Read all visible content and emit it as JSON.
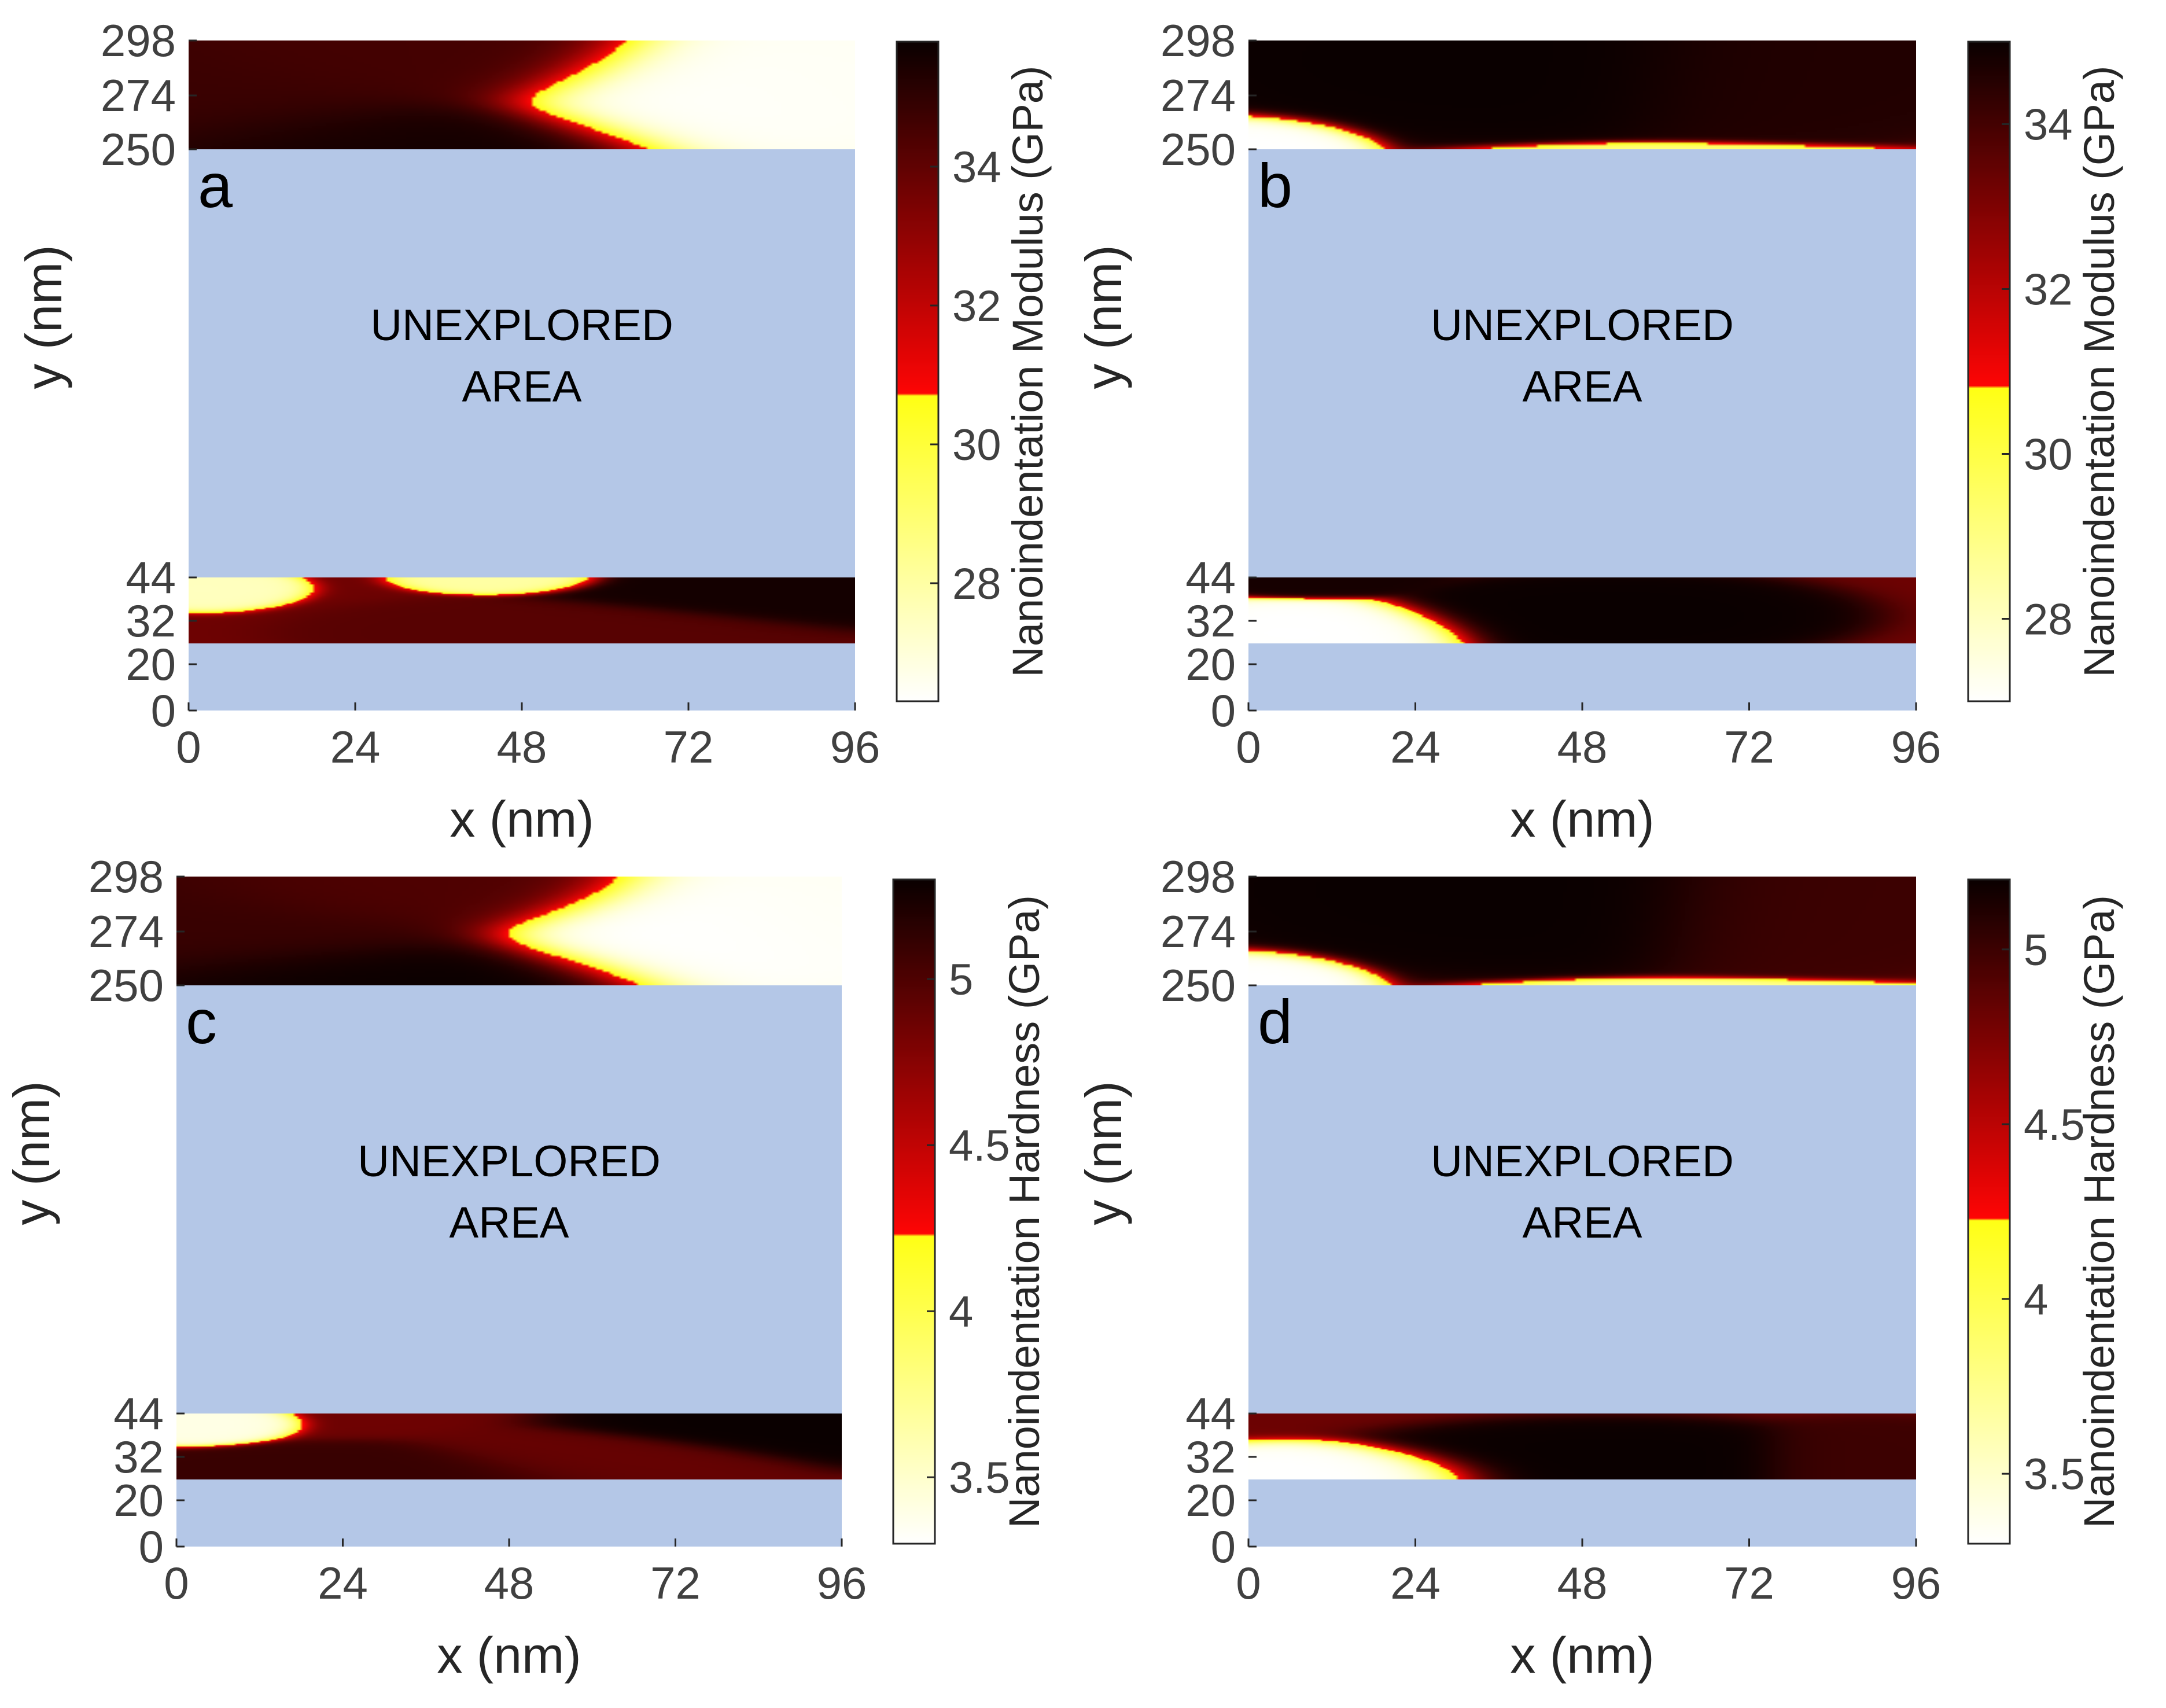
{
  "chart_data": [
    {
      "type": "heatmap",
      "panel_label": "a",
      "xlabel": "x  (nm)",
      "ylabel": "y  (nm)",
      "x_ticks": [
        0,
        24,
        48,
        72,
        96
      ],
      "y_ticks": [
        0,
        20,
        32,
        44,
        250,
        274,
        298
      ],
      "xlim": [
        0,
        96
      ],
      "colorbar": {
        "label": "Nanoindentation Modulus (GPa)",
        "ticks": [
          28,
          30,
          32,
          34
        ],
        "range": [
          26.3,
          35.8
        ],
        "yellow_red_break": 30.7
      },
      "unexplored_label": [
        "UNEXPLORED",
        "AREA"
      ],
      "bands": [
        {
          "y_range": [
            250,
            298
          ],
          "blobs": [
            {
              "x": 0,
              "y": 270,
              "rx": 35,
              "ry": 28,
              "v": 34.8
            },
            {
              "x": 22,
              "y": 252,
              "rx": 35,
              "ry": 18,
              "v": 35.6
            },
            {
              "x": 30,
              "y": 290,
              "rx": 30,
              "ry": 18,
              "v": 34.6
            },
            {
              "x": 82,
              "y": 275,
              "rx": 30,
              "ry": 22,
              "v": 26.4
            },
            {
              "x": 96,
              "y": 279,
              "rx": 24,
              "ry": 22,
              "v": 26.5
            }
          ]
        },
        {
          "y_range": [
            20,
            44
          ],
          "blobs": [
            {
              "x": 2,
              "y": 40,
              "rx": 9,
              "ry": 5,
              "v": 27.5
            },
            {
              "x": 46,
              "y": 44,
              "rx": 10,
              "ry": 4,
              "v": 28.0
            },
            {
              "x": 88,
              "y": 40,
              "rx": 25,
              "ry": 10,
              "v": 35.6
            },
            {
              "x": 56,
              "y": 24,
              "rx": 25,
              "ry": 8,
              "v": 34.2
            }
          ]
        }
      ]
    },
    {
      "type": "heatmap",
      "panel_label": "b",
      "xlabel": "x  (nm)",
      "ylabel": "y  (nm)",
      "x_ticks": [
        0,
        24,
        48,
        72,
        96
      ],
      "y_ticks": [
        0,
        20,
        32,
        44,
        250,
        274,
        298
      ],
      "xlim": [
        0,
        96
      ],
      "colorbar": {
        "label": "Nanoindentation Modulus (GPa)",
        "ticks": [
          28,
          30,
          32,
          34
        ],
        "range": [
          27.0,
          35.0
        ],
        "yellow_red_break": 30.8
      },
      "unexplored_label": [
        "UNEXPLORED",
        "AREA"
      ],
      "bands": [
        {
          "y_range": [
            250,
            298
          ],
          "blobs": [
            {
              "x": 38,
              "y": 290,
              "rx": 35,
              "ry": 25,
              "v": 35.0
            },
            {
              "x": 76,
              "y": 288,
              "rx": 24,
              "ry": 25,
              "v": 34.6
            },
            {
              "x": 0,
              "y": 250,
              "rx": 12,
              "ry": 10,
              "v": 27.0
            },
            {
              "x": 62,
              "y": 246,
              "rx": 24,
              "ry": 5,
              "v": 29.0
            }
          ]
        },
        {
          "y_range": [
            20,
            44
          ],
          "blobs": [
            {
              "x": 8,
              "y": 24,
              "rx": 18,
              "ry": 8,
              "v": 27.0
            },
            {
              "x": 52,
              "y": 30,
              "rx": 22,
              "ry": 10,
              "v": 35.0
            },
            {
              "x": 10,
              "y": 44,
              "rx": 12,
              "ry": 5,
              "v": 34.8
            }
          ]
        }
      ]
    },
    {
      "type": "heatmap",
      "panel_label": "c",
      "xlabel": "x  (nm)",
      "ylabel": "y  (nm)",
      "x_ticks": [
        0,
        24,
        48,
        72,
        96
      ],
      "y_ticks": [
        0,
        20,
        32,
        44,
        250,
        274,
        298
      ],
      "xlim": [
        0,
        96
      ],
      "colorbar": {
        "label": "Nanoindentation Hardness (GPa)",
        "ticks": [
          3.5,
          4,
          4.5,
          5
        ],
        "range": [
          3.3,
          5.3
        ],
        "yellow_red_break": 4.23
      },
      "unexplored_label": [
        "UNEXPLORED",
        "AREA"
      ],
      "bands": [
        {
          "y_range": [
            250,
            298
          ],
          "blobs": [
            {
              "x": 2,
              "y": 275,
              "rx": 35,
              "ry": 28,
              "v": 5.1
            },
            {
              "x": 22,
              "y": 252,
              "rx": 35,
              "ry": 16,
              "v": 5.3
            },
            {
              "x": 30,
              "y": 292,
              "rx": 30,
              "ry": 15,
              "v": 5.0
            },
            {
              "x": 84,
              "y": 275,
              "rx": 30,
              "ry": 22,
              "v": 3.3
            },
            {
              "x": 96,
              "y": 279,
              "rx": 24,
              "ry": 22,
              "v": 3.35
            }
          ]
        },
        {
          "y_range": [
            20,
            44
          ],
          "blobs": [
            {
              "x": 2,
              "y": 40,
              "rx": 9,
              "ry": 5,
              "v": 3.4
            },
            {
              "x": 90,
              "y": 40,
              "rx": 22,
              "ry": 10,
              "v": 5.3
            },
            {
              "x": 28,
              "y": 22,
              "rx": 30,
              "ry": 7,
              "v": 5.1
            },
            {
              "x": 62,
              "y": 26,
              "rx": 20,
              "ry": 8,
              "v": 4.9
            }
          ]
        }
      ]
    },
    {
      "type": "heatmap",
      "panel_label": "d",
      "xlabel": "x  (nm)",
      "ylabel": "y  (nm)",
      "x_ticks": [
        0,
        24,
        48,
        72,
        96
      ],
      "y_ticks": [
        0,
        20,
        32,
        44,
        250,
        274,
        298
      ],
      "xlim": [
        0,
        96
      ],
      "colorbar": {
        "label": "Nanoindentation Hardness (GPa)",
        "ticks": [
          3.5,
          4,
          4.5,
          5
        ],
        "range": [
          3.3,
          5.2
        ],
        "yellow_red_break": 4.23
      },
      "unexplored_label": [
        "UNEXPLORED",
        "AREA"
      ],
      "bands": [
        {
          "y_range": [
            250,
            298
          ],
          "blobs": [
            {
              "x": 40,
              "y": 292,
              "rx": 35,
              "ry": 25,
              "v": 5.2
            },
            {
              "x": 78,
              "y": 290,
              "rx": 22,
              "ry": 25,
              "v": 5.0
            },
            {
              "x": 0,
              "y": 250,
              "rx": 12,
              "ry": 10,
              "v": 3.3
            },
            {
              "x": 64,
              "y": 246,
              "rx": 24,
              "ry": 5,
              "v": 3.7
            }
          ]
        },
        {
          "y_range": [
            20,
            44
          ],
          "blobs": [
            {
              "x": 10,
              "y": 22,
              "rx": 20,
              "ry": 7,
              "v": 3.3
            },
            {
              "x": 52,
              "y": 26,
              "rx": 25,
              "ry": 10,
              "v": 5.2
            },
            {
              "x": 90,
              "y": 26,
              "rx": 15,
              "ry": 10,
              "v": 5.0
            }
          ]
        }
      ]
    }
  ]
}
